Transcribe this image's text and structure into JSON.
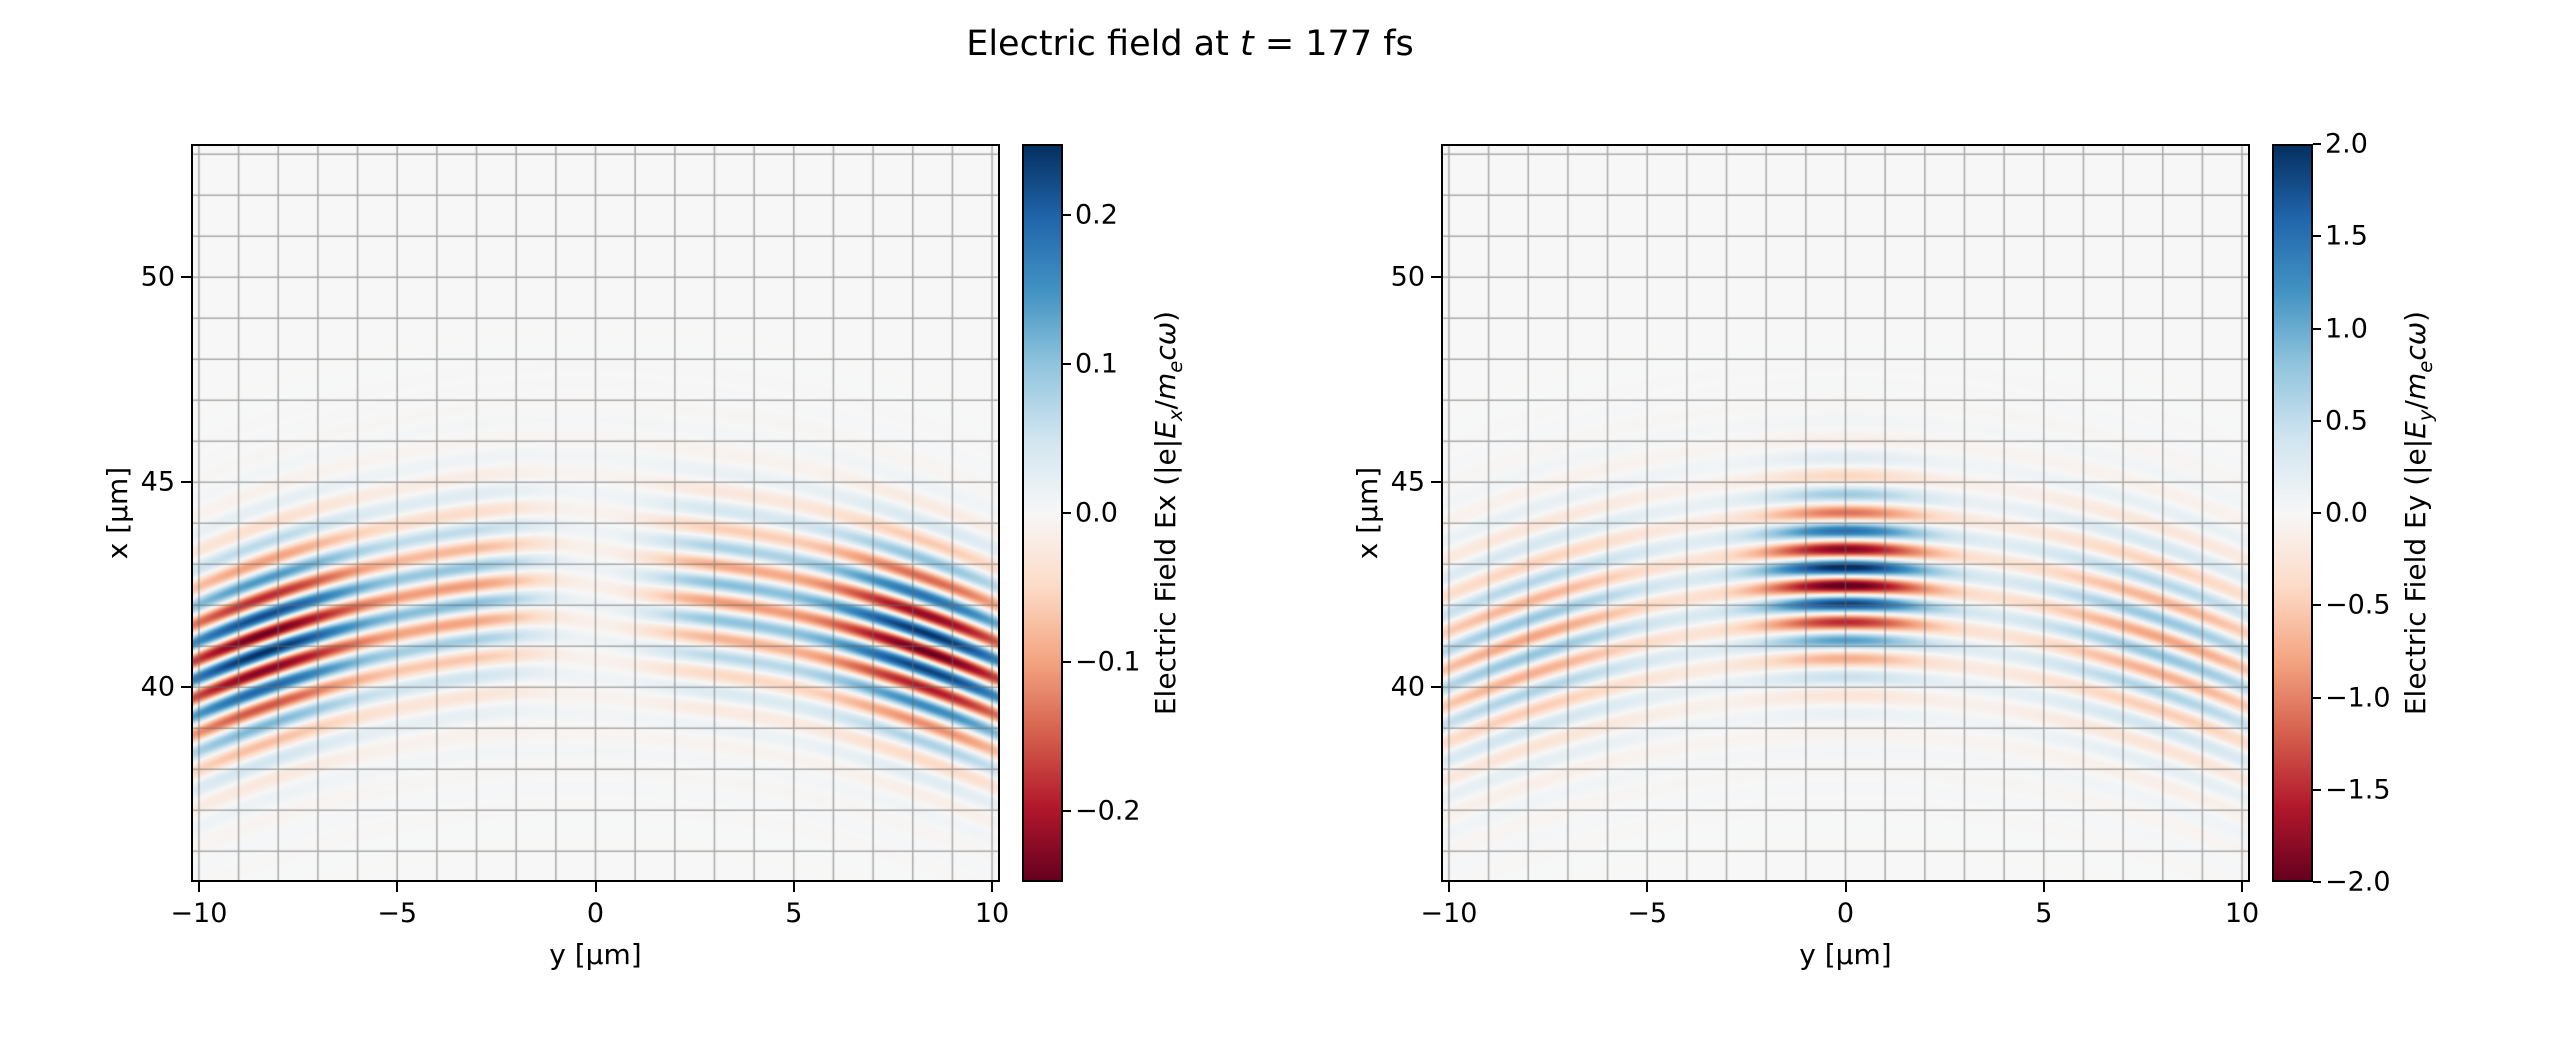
{
  "title": {
    "parts": [
      [
        "Electric field at ",
        ""
      ],
      [
        "t",
        "i"
      ],
      [
        " = 177 fs",
        ""
      ]
    ]
  },
  "chart_data": {
    "type": "heatmap",
    "colormap": {
      "name": "RdBu",
      "stops": [
        "#67001f",
        "#b2182b",
        "#d6604d",
        "#f4a582",
        "#fddbc7",
        "#f7f7f7",
        "#d1e5f0",
        "#92c5de",
        "#4393c3",
        "#2166ac",
        "#053061"
      ]
    },
    "grid": {
      "step_um": 1,
      "color": "rgba(105,105,105,0.55)",
      "linewidth": 1.5
    },
    "wave": {
      "lambda_um": 0.9,
      "curvature_radius_um": 25,
      "phase_ref_um": 42.7
    },
    "panels": [
      {
        "id": "Ex",
        "xlabel": "y [μm]",
        "ylabel": "x [μm]",
        "x_range": [
          -10.2,
          10.2
        ],
        "y_range": [
          35.25,
          53.25
        ],
        "x_ticks": [
          {
            "v": -10,
            "label": "−10"
          },
          {
            "v": -5,
            "label": "−5"
          },
          {
            "v": 0,
            "label": "0"
          },
          {
            "v": 5,
            "label": "5"
          },
          {
            "v": 10,
            "label": "10"
          }
        ],
        "y_ticks": [
          {
            "v": 50,
            "label": "50"
          },
          {
            "v": 45,
            "label": "45"
          },
          {
            "v": 40,
            "label": "40"
          }
        ],
        "colorbar": {
          "vmin": -0.248,
          "vmax": 0.248,
          "ticks": [
            {
              "v": 0.2,
              "label": "0.2"
            },
            {
              "v": 0.1,
              "label": "0.1"
            },
            {
              "v": 0.0,
              "label": "0.0"
            },
            {
              "v": -0.1,
              "label": "−0.1"
            },
            {
              "v": -0.2,
              "label": "−0.2"
            }
          ],
          "label_parts": [
            [
              "Electric Field Ex (|e|",
              ""
            ],
            [
              "E",
              "i"
            ],
            [
              "x",
              "isub"
            ],
            [
              "/",
              ""
            ],
            [
              "m",
              "i"
            ],
            [
              "e",
              "isub"
            ],
            [
              "c",
              "i"
            ],
            [
              "ω",
              "i"
            ],
            [
              ")",
              ""
            ]
          ]
        },
        "field": {
          "type": "longitudinal",
          "odd_width": 1.5,
          "lobes": [
            {
              "amp": 0.1,
              "yc": 3.0,
              "yw": 2.3
            },
            {
              "amp": 0.248,
              "yc": 8.4,
              "yw": 2.9
            }
          ],
          "u_center": 42.4,
          "u_width": 2.2,
          "bg": {
            "amp": 0.014,
            "uc": 42.3,
            "uw": 3.6
          }
        }
      },
      {
        "id": "Ey",
        "xlabel": "y [μm]",
        "ylabel": "x [μm]",
        "x_range": [
          -10.2,
          10.2
        ],
        "y_range": [
          35.25,
          53.25
        ],
        "x_ticks": [
          {
            "v": -10,
            "label": "−10"
          },
          {
            "v": -5,
            "label": "−5"
          },
          {
            "v": 0,
            "label": "0"
          },
          {
            "v": 5,
            "label": "5"
          },
          {
            "v": 10,
            "label": "10"
          }
        ],
        "y_ticks": [
          {
            "v": 50,
            "label": "50"
          },
          {
            "v": 45,
            "label": "45"
          },
          {
            "v": 40,
            "label": "40"
          }
        ],
        "colorbar": {
          "vmin": -2.0,
          "vmax": 2.0,
          "ticks": [
            {
              "v": 2.0,
              "label": "2.0"
            },
            {
              "v": 1.5,
              "label": "1.5"
            },
            {
              "v": 1.0,
              "label": "1.0"
            },
            {
              "v": 0.5,
              "label": "0.5"
            },
            {
              "v": 0.0,
              "label": "0.0"
            },
            {
              "v": -0.5,
              "label": "−0.5"
            },
            {
              "v": -1.0,
              "label": "−1.0"
            },
            {
              "v": -1.5,
              "label": "−1.5"
            },
            {
              "v": -2.0,
              "label": "−2.0"
            }
          ],
          "label_parts": [
            [
              "Electric Field Ey (|e|",
              ""
            ],
            [
              "E",
              "i"
            ],
            [
              "y",
              "isub"
            ],
            [
              "/",
              ""
            ],
            [
              "m",
              "i"
            ],
            [
              "e",
              "isub"
            ],
            [
              "c",
              "i"
            ],
            [
              "ω",
              "i"
            ],
            [
              ")",
              ""
            ]
          ]
        },
        "field": {
          "type": "transverse",
          "main": {
            "amp": 2.0,
            "uc": 42.7,
            "uw": 1.9,
            "yw": 2.1
          },
          "wing": {
            "amp": 0.7,
            "uc": 42.4,
            "uw": 2.4,
            "yc": 8.0,
            "yw": 3.4
          },
          "bg": {
            "amp": 0.1,
            "uc": 42.3,
            "uw": 3.6
          }
        }
      }
    ]
  }
}
